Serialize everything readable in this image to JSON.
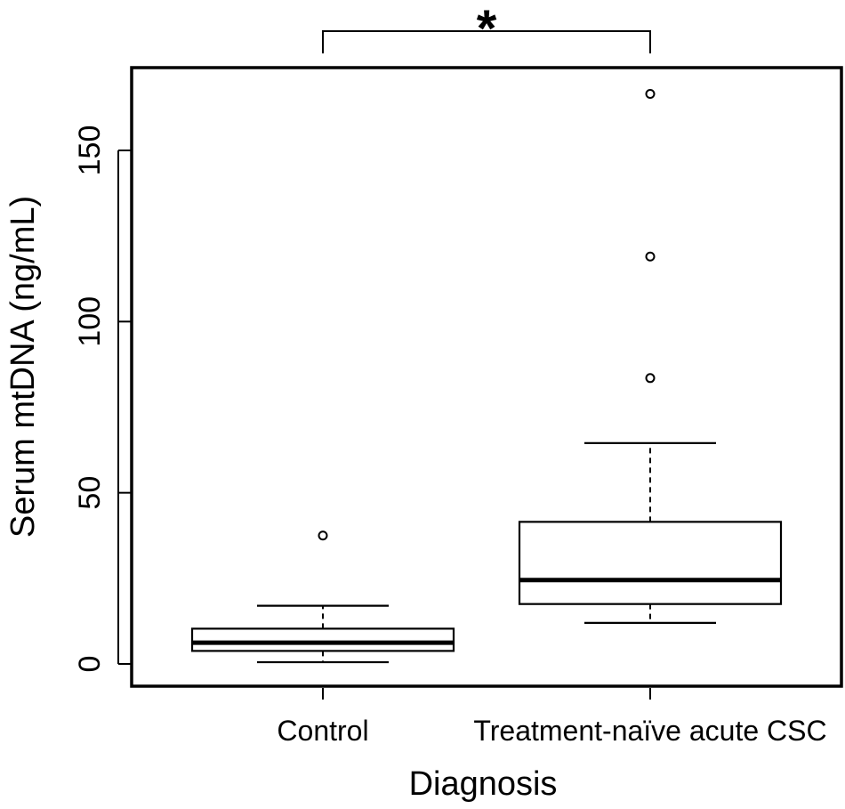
{
  "chart_data": {
    "type": "box",
    "title": "",
    "xlabel": "Diagnosis",
    "ylabel": "Serum mtDNA (ng/mL)",
    "ylim": [
      -6,
      172
    ],
    "yticks": [
      0,
      50,
      100,
      150
    ],
    "grid": false,
    "categories": [
      "Control",
      "Treatment-naïve acute CSC"
    ],
    "boxes": [
      {
        "category": "Control",
        "whisker_low": 0.5,
        "q1": 3.8,
        "median": 6.2,
        "q3": 10.3,
        "whisker_high": 17.0,
        "outliers": [
          37.5
        ]
      },
      {
        "category": "Treatment-naïve acute CSC",
        "whisker_low": 12.0,
        "q1": 17.5,
        "median": 24.5,
        "q3": 41.5,
        "whisker_high": 64.5,
        "outliers": [
          83.5,
          119.0,
          166.5
        ]
      }
    ],
    "annotations": [
      {
        "text": "*",
        "between": [
          "Control",
          "Treatment-naïve acute CSC"
        ]
      }
    ]
  }
}
